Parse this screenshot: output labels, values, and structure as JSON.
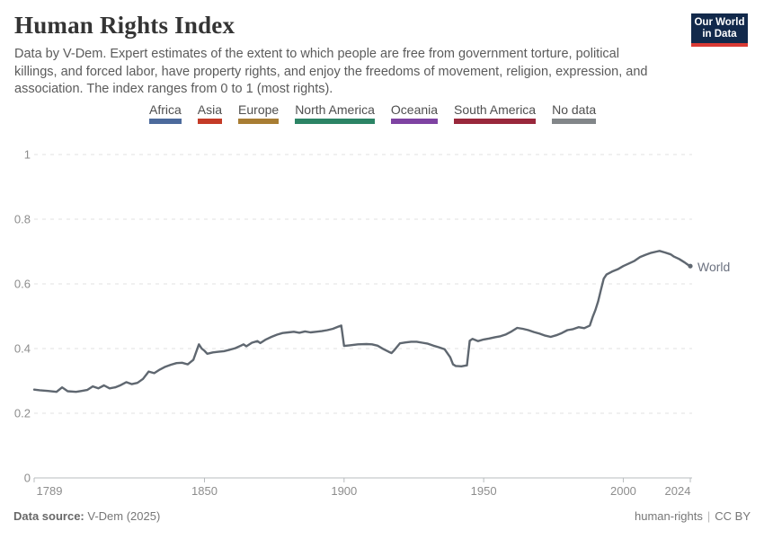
{
  "header": {
    "title": "Human Rights Index",
    "subtitle": "Data by V-Dem. Expert estimates of the extent to which people are free from government torture, political killings, and forced labor, have property rights, and enjoy the freedoms of movement, religion, expression, and association. The index ranges from 0 to 1 (most rights).",
    "logo": {
      "line1": "Our World",
      "line2": "in Data",
      "bg_color": "#12294B",
      "accent_color": "#D93A34"
    }
  },
  "legend": {
    "items": [
      {
        "label": "Africa",
        "color": "#4C6A9C"
      },
      {
        "label": "Asia",
        "color": "#C43B27"
      },
      {
        "label": "Europe",
        "color": "#A87D33"
      },
      {
        "label": "North America",
        "color": "#2C8465"
      },
      {
        "label": "Oceania",
        "color": "#7E43A2"
      },
      {
        "label": "South America",
        "color": "#99283C"
      },
      {
        "label": "No data",
        "color": "#828689"
      }
    ]
  },
  "chart_data": {
    "type": "line",
    "title": "Human Rights Index",
    "xlabel": "",
    "ylabel": "",
    "xlim": [
      1789,
      2024
    ],
    "ylim": [
      0,
      1
    ],
    "x_ticks": [
      1789,
      1850,
      1900,
      1950,
      2000,
      2024
    ],
    "y_ticks": [
      0,
      0.2,
      0.4,
      0.6,
      0.8,
      1
    ],
    "grid": "horizontal-dashed",
    "legend_position": "top",
    "grid_color": "#e2e2e2",
    "axis_color": "#b8bcbf",
    "tick_label_color": "#8d8d8d",
    "series": [
      {
        "name": "World",
        "color": "#5F6770",
        "x": [
          1789,
          1791,
          1794,
          1797,
          1799,
          1801,
          1804,
          1806,
          1808,
          1810,
          1812,
          1814,
          1816,
          1818,
          1820,
          1822,
          1824,
          1826,
          1828,
          1830,
          1832,
          1834,
          1836,
          1838,
          1840,
          1842,
          1844,
          1846,
          1848,
          1849,
          1850,
          1851,
          1853,
          1855,
          1857,
          1859,
          1861,
          1863,
          1864,
          1865,
          1867,
          1869,
          1870,
          1872,
          1874,
          1876,
          1878,
          1880,
          1882,
          1884,
          1886,
          1888,
          1890,
          1892,
          1894,
          1896,
          1898,
          1899,
          1900,
          1902,
          1905,
          1908,
          1910,
          1912,
          1914,
          1916,
          1917,
          1918,
          1920,
          1922,
          1924,
          1926,
          1928,
          1930,
          1932,
          1934,
          1936,
          1938,
          1939,
          1940,
          1942,
          1944,
          1945,
          1946,
          1948,
          1950,
          1952,
          1954,
          1956,
          1958,
          1960,
          1962,
          1964,
          1966,
          1968,
          1970,
          1972,
          1974,
          1976,
          1978,
          1980,
          1982,
          1984,
          1986,
          1988,
          1989,
          1990,
          1991,
          1992,
          1993,
          1994,
          1996,
          1998,
          2000,
          2002,
          2004,
          2006,
          2008,
          2010,
          2012,
          2013,
          2015,
          2017,
          2018,
          2020,
          2022,
          2023,
          2024
        ],
        "values": [
          0.273,
          0.271,
          0.269,
          0.266,
          0.28,
          0.268,
          0.266,
          0.269,
          0.272,
          0.283,
          0.277,
          0.286,
          0.277,
          0.28,
          0.287,
          0.296,
          0.29,
          0.294,
          0.306,
          0.329,
          0.324,
          0.335,
          0.344,
          0.35,
          0.355,
          0.356,
          0.351,
          0.365,
          0.413,
          0.4,
          0.393,
          0.384,
          0.388,
          0.39,
          0.392,
          0.396,
          0.401,
          0.409,
          0.413,
          0.407,
          0.418,
          0.423,
          0.417,
          0.428,
          0.436,
          0.443,
          0.448,
          0.45,
          0.452,
          0.449,
          0.453,
          0.45,
          0.452,
          0.454,
          0.457,
          0.461,
          0.468,
          0.471,
          0.408,
          0.41,
          0.413,
          0.414,
          0.413,
          0.409,
          0.399,
          0.39,
          0.386,
          0.395,
          0.416,
          0.419,
          0.421,
          0.421,
          0.418,
          0.415,
          0.409,
          0.404,
          0.398,
          0.373,
          0.351,
          0.346,
          0.345,
          0.348,
          0.424,
          0.43,
          0.423,
          0.428,
          0.431,
          0.435,
          0.438,
          0.444,
          0.453,
          0.464,
          0.461,
          0.457,
          0.451,
          0.446,
          0.44,
          0.436,
          0.441,
          0.448,
          0.457,
          0.46,
          0.466,
          0.463,
          0.471,
          0.497,
          0.519,
          0.546,
          0.582,
          0.616,
          0.629,
          0.638,
          0.645,
          0.655,
          0.663,
          0.671,
          0.683,
          0.69,
          0.696,
          0.7,
          0.702,
          0.697,
          0.691,
          0.685,
          0.677,
          0.666,
          0.66,
          0.655
        ]
      }
    ]
  },
  "footer": {
    "source_label": "Data source:",
    "source_value": "V-Dem (2025)",
    "slug": "human-rights",
    "separator": "|",
    "license": "CC BY"
  }
}
